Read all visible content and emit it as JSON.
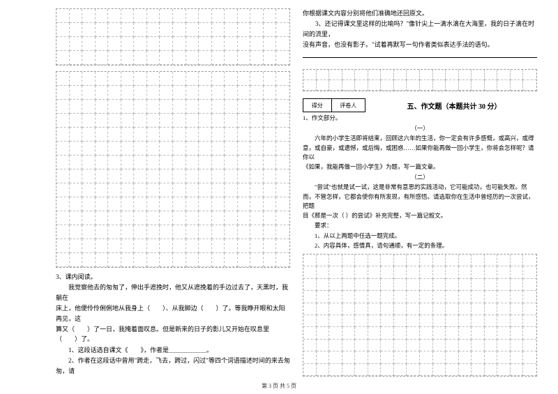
{
  "colors": {
    "text": "#000000",
    "background": "#ffffff",
    "grid_border": "#999999",
    "grid_cell": "#bbbbbb"
  },
  "fonts": {
    "body_family": "SimSun",
    "body_size_pt": 9,
    "title_size_pt": 10,
    "footer_size_pt": 8
  },
  "grids": {
    "left_top": {
      "cols": 18,
      "rows": 4,
      "border_style": "dashed"
    },
    "left_mid": {
      "cols": 18,
      "rows": 14,
      "border_style": "dashed"
    },
    "right_top": {
      "cols": 18,
      "rows": 2,
      "border_style": "dashed"
    },
    "right_main": {
      "cols": 18,
      "rows": 10,
      "border_style": "dashed"
    }
  },
  "left": {
    "reading_label": "3、课内阅读。",
    "passage_l1": "我觉察他去的匆匆了，伸出手遮挽时，他又从遮挽着的手边过去了，天黑时，我躺在",
    "passage_l2": "床上，他便伶伶俐俐地从我身上（　　）、从我脚边（　　）了。等我睁开眼和太阳再见，这",
    "passage_l3": "算又（　　）了一日，我掩着面叹息。但是新来的日子的影儿又开始在叹息里（　　）了。",
    "q1": "1、这段话选自课文《　　》，作者是＿＿＿＿＿＿。",
    "q2": "2、作者在这段话中曾用\"跨走，飞去，跨过，闪过\"等四个词语描述时间的来去匆匆，请"
  },
  "right": {
    "continue_line": "你根据课文内容分别将他们准确地还回原文。",
    "q3_l1": "3、还记得课文里这样的比喻吗？\"像针尖上一滴水滴在大海里，我的日子滴在时间的流里，",
    "q3_l2": "没有声音，也没有影子。\"试着再默写一句作者类似表达手法的语句。",
    "score_label_1": "得分",
    "score_label_2": "评卷人",
    "section_title": "五、作文题（本题共计 30 分）",
    "essay_label": "1、作文部分。",
    "part1_label": "（一）",
    "part1_l1": "六年的小学生活即将结束，回顾这六年的生活，你一定会有许多感慨，或高兴，或得",
    "part1_l2": "意，或自豪，或遗憾，或后悔，或困惑……如果你能再做一回小学生，你将会怎样呢？请你以",
    "part1_l3": "《如果，我能再做一回小学生》为题，写一篇文章。",
    "part2_label": "（二）",
    "part2_l1": "\"尝试\"也就是试一试，这是非常有意思的实践活动，它可能成功，也可能失败。然",
    "part2_l2": "而，不管怎样，它都会使你有所发现，有所感悟。请选取你在生活中曾经历的一次尝试，把题",
    "part2_l3": "目《那是一次（ ）的尝试》补充完整，写一篇记叙文。",
    "req_label": "要求：",
    "req_1": "1、从以上两题中任选一题完成。",
    "req_2": "2、内容具体，感情真，语句通顺，有一定的条理。"
  },
  "footer": "第 3 页 共 5 页"
}
